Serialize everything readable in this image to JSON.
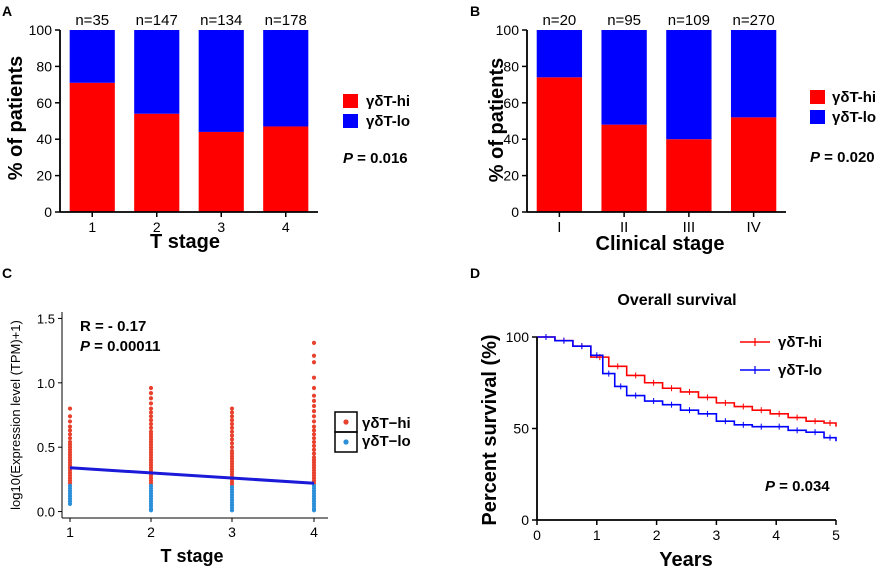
{
  "colors": {
    "hi": "#ff0000",
    "lo": "#0000ff",
    "axis": "#000000",
    "scatter_hi": "#e8422e",
    "scatter_lo": "#2a8fd8",
    "fit": "#1a1ad8"
  },
  "chart_data": [
    {
      "panel": "A",
      "type": "bar",
      "stacked": true,
      "categories": [
        "1",
        "2",
        "3",
        "4"
      ],
      "n_labels": [
        "n=35",
        "n=147",
        "n=134",
        "n=178"
      ],
      "series": [
        {
          "name": "γδT-hi",
          "values": [
            71,
            54,
            44,
            47
          ]
        },
        {
          "name": "γδT-lo",
          "values": [
            29,
            46,
            56,
            53
          ]
        }
      ],
      "xlabel": "T stage",
      "ylabel": "% of patients",
      "ylim": [
        0,
        100
      ],
      "yticks": [
        "0",
        "20",
        "40",
        "60",
        "80",
        "100"
      ],
      "legend": [
        "γδT-hi",
        "γδT-lo"
      ],
      "p_prefix": "P",
      "p_suffix": " = 0.016"
    },
    {
      "panel": "B",
      "type": "bar",
      "stacked": true,
      "categories": [
        "I",
        "II",
        "III",
        "IV"
      ],
      "n_labels": [
        "n=20",
        "n=95",
        "n=109",
        "n=270"
      ],
      "series": [
        {
          "name": "γδT-hi",
          "values": [
            74,
            48,
            40,
            52
          ]
        },
        {
          "name": "γδT-lo",
          "values": [
            26,
            52,
            60,
            48
          ]
        }
      ],
      "xlabel": "Clinical stage",
      "ylabel": "% of patients",
      "ylim": [
        0,
        100
      ],
      "yticks": [
        "0",
        "20",
        "40",
        "60",
        "80",
        "100"
      ],
      "legend": [
        "γδT-hi",
        "γδT-lo"
      ],
      "p_prefix": "P",
      "p_suffix": " = 0.020"
    },
    {
      "panel": "C",
      "type": "scatter",
      "categories": [
        "1",
        "2",
        "3",
        "4"
      ],
      "xlabel": "T stage",
      "ylabel": "log10(Expression level (TPM)+1)",
      "ylim": [
        -0.05,
        1.55
      ],
      "yticks": [
        "0.0",
        "0.5",
        "1.0",
        "1.5"
      ],
      "fit_line": {
        "x": [
          1,
          4
        ],
        "y": [
          0.34,
          0.22
        ]
      },
      "annotation_r": "R = - 0.17",
      "annotation_p_prefix": "P",
      "annotation_p_suffix": " = 0.00011",
      "legend": [
        "γδT−hi",
        "γδT−lo"
      ],
      "series": [
        {
          "name": "γδT−hi",
          "x": 1,
          "values": [
            0.8,
            0.74,
            0.7,
            0.66,
            0.63,
            0.6,
            0.57,
            0.54,
            0.52,
            0.5,
            0.48,
            0.46,
            0.44,
            0.42,
            0.4,
            0.38,
            0.36,
            0.34,
            0.32,
            0.3,
            0.28,
            0.26,
            0.24,
            0.22
          ]
        },
        {
          "name": "γδT−lo",
          "x": 1,
          "values": [
            0.2,
            0.18,
            0.16,
            0.14,
            0.12,
            0.1,
            0.08,
            0.06
          ]
        },
        {
          "name": "γδT−hi",
          "x": 2,
          "values": [
            0.96,
            0.92,
            0.88,
            0.84,
            0.8,
            0.77,
            0.74,
            0.71,
            0.68,
            0.65,
            0.62,
            0.6,
            0.58,
            0.56,
            0.54,
            0.52,
            0.5,
            0.48,
            0.46,
            0.44,
            0.42,
            0.4,
            0.38,
            0.36,
            0.34,
            0.32,
            0.3,
            0.28,
            0.26,
            0.24,
            0.22
          ]
        },
        {
          "name": "γδT−lo",
          "x": 2,
          "values": [
            0.2,
            0.18,
            0.16,
            0.14,
            0.12,
            0.1,
            0.08,
            0.06,
            0.04,
            0.02,
            0.01
          ]
        },
        {
          "name": "γδT−hi",
          "x": 3,
          "values": [
            0.8,
            0.77,
            0.74,
            0.71,
            0.68,
            0.65,
            0.62,
            0.59,
            0.56,
            0.53,
            0.5,
            0.47,
            0.45,
            0.43,
            0.41,
            0.39,
            0.37,
            0.35,
            0.33,
            0.31,
            0.29,
            0.27,
            0.25,
            0.23,
            0.21
          ]
        },
        {
          "name": "γδT−lo",
          "x": 3,
          "values": [
            0.19,
            0.17,
            0.15,
            0.13,
            0.11,
            0.09,
            0.07,
            0.05,
            0.03,
            0.01
          ]
        },
        {
          "name": "γδT−hi",
          "x": 4,
          "values": [
            1.31,
            1.21,
            1.16,
            1.04,
            0.96,
            0.9,
            0.86,
            0.82,
            0.78,
            0.74,
            0.7,
            0.66,
            0.63,
            0.6,
            0.57,
            0.54,
            0.51,
            0.48,
            0.45,
            0.42,
            0.4,
            0.38,
            0.36,
            0.34,
            0.32,
            0.3,
            0.28,
            0.26,
            0.24,
            0.22
          ]
        },
        {
          "name": "γδT−lo",
          "x": 4,
          "values": [
            0.2,
            0.18,
            0.16,
            0.14,
            0.12,
            0.1,
            0.08,
            0.06,
            0.04,
            0.02,
            0.01
          ]
        }
      ]
    },
    {
      "panel": "D",
      "type": "line",
      "title": "Overall survival",
      "xlabel": "Years",
      "ylabel": "Percent survival (%)",
      "xlim": [
        0,
        5
      ],
      "ylim": [
        0,
        100
      ],
      "xticks": [
        "0",
        "1",
        "2",
        "3",
        "4",
        "5"
      ],
      "yticks": [
        "0",
        "50",
        "100"
      ],
      "legend": [
        "γδT-hi",
        "γδT-lo"
      ],
      "p_prefix": "P",
      "p_suffix": " = 0.034",
      "series": [
        {
          "name": "γδT-hi",
          "x": [
            0,
            0.3,
            0.6,
            0.9,
            1.2,
            1.5,
            1.8,
            2.1,
            2.4,
            2.7,
            3.0,
            3.3,
            3.6,
            3.9,
            4.2,
            4.5,
            4.8,
            5.0
          ],
          "y": [
            100,
            98,
            95,
            89,
            84,
            79,
            75,
            72,
            70,
            67,
            64,
            62,
            60,
            58,
            56,
            54,
            53,
            51
          ]
        },
        {
          "name": "γδT-lo",
          "x": [
            0,
            0.3,
            0.6,
            0.9,
            1.1,
            1.3,
            1.5,
            1.8,
            2.1,
            2.4,
            2.7,
            3.0,
            3.3,
            3.6,
            3.9,
            4.2,
            4.5,
            4.8,
            5.0
          ],
          "y": [
            100,
            98,
            95,
            90,
            80,
            73,
            68,
            65,
            63,
            60,
            58,
            54,
            52,
            51,
            51,
            49,
            48,
            45,
            43
          ]
        }
      ]
    }
  ],
  "panel_letters": [
    "A",
    "B",
    "C",
    "D"
  ]
}
